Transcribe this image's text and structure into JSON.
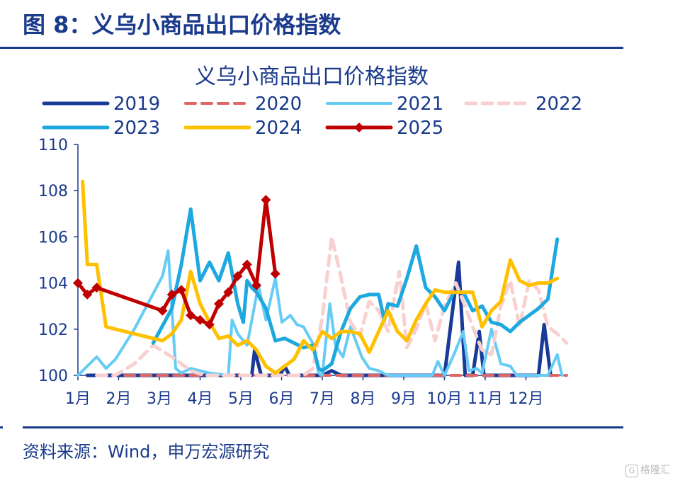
{
  "figure": {
    "header": "图 8：义乌小商品出口价格指数",
    "source": "资料来源：Wind，申万宏源研究",
    "watermark": "格隆汇"
  },
  "colors": {
    "accent": "#1a3a8c"
  },
  "chart_data": {
    "type": "line",
    "title": "义乌小商品出口价格指数",
    "xlabel": "",
    "ylabel": "",
    "ylim": [
      100,
      110
    ],
    "yticks": [
      100,
      102,
      104,
      106,
      108,
      110
    ],
    "xlim": [
      0,
      52
    ],
    "xticks": [
      {
        "label": "1月",
        "pos": 0
      },
      {
        "label": "2月",
        "pos": 4.33
      },
      {
        "label": "3月",
        "pos": 8.67
      },
      {
        "label": "4月",
        "pos": 13
      },
      {
        "label": "5月",
        "pos": 17.33
      },
      {
        "label": "6月",
        "pos": 21.67
      },
      {
        "label": "7月",
        "pos": 26
      },
      {
        "label": "8月",
        "pos": 30.33
      },
      {
        "label": "9月",
        "pos": 34.67
      },
      {
        "label": "10月",
        "pos": 39
      },
      {
        "label": "11月",
        "pos": 43.33
      },
      {
        "label": "12月",
        "pos": 47.67
      }
    ],
    "grid": false,
    "legend_position": "top",
    "series": [
      {
        "name": "2019",
        "color": "#1a3a99",
        "dash": "solid",
        "width": 5,
        "marker": "none",
        "points": [
          [
            1,
            100
          ],
          [
            8,
            100
          ],
          [
            16,
            100
          ],
          [
            18.5,
            100
          ],
          [
            18.8,
            101.1
          ],
          [
            19.5,
            100
          ],
          [
            21.5,
            100
          ],
          [
            22,
            100.4
          ],
          [
            22.5,
            100
          ],
          [
            26,
            100
          ],
          [
            27,
            100.2
          ],
          [
            28,
            100
          ],
          [
            39,
            100
          ],
          [
            40.5,
            104.9
          ],
          [
            41.2,
            100
          ],
          [
            42,
            100
          ],
          [
            42.7,
            101.9
          ],
          [
            43.2,
            100
          ],
          [
            49,
            100
          ],
          [
            49.6,
            102.2
          ],
          [
            50.3,
            100
          ]
        ]
      },
      {
        "name": "2020",
        "color": "#e06666",
        "dash": "dashed",
        "width": 4,
        "marker": "none",
        "points": [
          [
            5,
            100
          ],
          [
            52,
            100
          ]
        ]
      },
      {
        "name": "2021",
        "color": "#66ccf5",
        "dash": "solid",
        "width": 4,
        "marker": "none",
        "points": [
          [
            0,
            100
          ],
          [
            2,
            100.8
          ],
          [
            3,
            100.3
          ],
          [
            4,
            100.7
          ],
          [
            6,
            102
          ],
          [
            9,
            104.3
          ],
          [
            9.6,
            105.4
          ],
          [
            10.4,
            100.3
          ],
          [
            11,
            100.1
          ],
          [
            12,
            100.3
          ],
          [
            14,
            100.1
          ],
          [
            16,
            100
          ],
          [
            16.4,
            102.4
          ],
          [
            17,
            101.8
          ],
          [
            18,
            101.3
          ],
          [
            19.2,
            103.9
          ],
          [
            20,
            102.4
          ],
          [
            21,
            104.2
          ],
          [
            21.7,
            102.3
          ],
          [
            22.6,
            102.6
          ],
          [
            23.3,
            102.2
          ],
          [
            24,
            102.1
          ],
          [
            25.1,
            101.3
          ],
          [
            25.6,
            100.1
          ],
          [
            26,
            100
          ],
          [
            26.8,
            103.1
          ],
          [
            27.4,
            101.3
          ],
          [
            28.2,
            100.8
          ],
          [
            29,
            102.1
          ],
          [
            30.2,
            100.8
          ],
          [
            31,
            100.3
          ],
          [
            32,
            100.2
          ],
          [
            33,
            100
          ],
          [
            37.7,
            100
          ],
          [
            38.3,
            100.6
          ],
          [
            39,
            100
          ],
          [
            40,
            100.9
          ],
          [
            41,
            101.9
          ],
          [
            41.6,
            100.2
          ],
          [
            42.4,
            100.3
          ],
          [
            43,
            100.1
          ],
          [
            44,
            102
          ],
          [
            45,
            100.5
          ],
          [
            46,
            100.4
          ],
          [
            46.7,
            100
          ],
          [
            50,
            100
          ],
          [
            51,
            100.9
          ],
          [
            51.5,
            100
          ]
        ]
      },
      {
        "name": "2022",
        "color": "#f9d0d0",
        "dash": "dashed",
        "width": 5,
        "marker": "none",
        "points": [
          [
            2,
            100
          ],
          [
            4,
            100
          ],
          [
            6,
            100.5
          ],
          [
            8,
            101.3
          ],
          [
            10,
            100.8
          ],
          [
            12,
            100.2
          ],
          [
            13.5,
            100
          ],
          [
            24,
            100
          ],
          [
            25,
            100.3
          ],
          [
            26,
            102.5
          ],
          [
            27,
            106
          ],
          [
            27.8,
            104.6
          ],
          [
            29,
            102.3
          ],
          [
            30,
            101.7
          ],
          [
            31,
            103.2
          ],
          [
            32,
            102.8
          ],
          [
            33,
            101.9
          ],
          [
            34.2,
            104.5
          ],
          [
            35,
            101.2
          ],
          [
            36,
            102
          ],
          [
            37,
            103.1
          ],
          [
            38,
            101.5
          ],
          [
            39,
            103
          ],
          [
            40.2,
            104
          ],
          [
            41,
            103.2
          ],
          [
            42,
            102.1
          ],
          [
            43,
            101.1
          ],
          [
            44,
            100.9
          ],
          [
            45,
            103
          ],
          [
            46,
            104.1
          ],
          [
            47,
            102.1
          ],
          [
            48,
            104.1
          ],
          [
            49,
            103.7
          ],
          [
            50,
            102.1
          ],
          [
            51,
            101.8
          ],
          [
            52,
            101.4
          ]
        ]
      },
      {
        "name": "2023",
        "color": "#1da8e0",
        "dash": "solid",
        "width": 5,
        "marker": "none",
        "points": [
          [
            8,
            101.4
          ],
          [
            10,
            102.9
          ],
          [
            11,
            104.8
          ],
          [
            12,
            107.2
          ],
          [
            13,
            104.1
          ],
          [
            14,
            104.9
          ],
          [
            15,
            104.1
          ],
          [
            16,
            105.3
          ],
          [
            17,
            103.1
          ],
          [
            17.6,
            102.3
          ],
          [
            18,
            104.1
          ],
          [
            18.5,
            103.8
          ],
          [
            19,
            103.6
          ],
          [
            20,
            102.9
          ],
          [
            21,
            101.5
          ],
          [
            22,
            101.6
          ],
          [
            23,
            101.4
          ],
          [
            24,
            101.2
          ],
          [
            25,
            101.3
          ],
          [
            25.6,
            100.3
          ],
          [
            26,
            100.2
          ],
          [
            27,
            100.5
          ],
          [
            28,
            101.9
          ],
          [
            29,
            102.9
          ],
          [
            30,
            103.4
          ],
          [
            31,
            103.5
          ],
          [
            32,
            103.5
          ],
          [
            32.6,
            102.4
          ],
          [
            33,
            103.1
          ],
          [
            34,
            103
          ],
          [
            35,
            104.2
          ],
          [
            36,
            105.6
          ],
          [
            37,
            103.8
          ],
          [
            38,
            103.4
          ],
          [
            39,
            102.8
          ],
          [
            40,
            103.6
          ],
          [
            41,
            103.6
          ],
          [
            42,
            102.8
          ],
          [
            43,
            103
          ],
          [
            44,
            102.3
          ],
          [
            45,
            102.2
          ],
          [
            46,
            101.9
          ],
          [
            47,
            102.3
          ],
          [
            48,
            102.6
          ],
          [
            49,
            102.9
          ],
          [
            50,
            103.3
          ],
          [
            51,
            105.9
          ]
        ]
      },
      {
        "name": "2024",
        "color": "#ffc000",
        "dash": "solid",
        "width": 5,
        "marker": "none",
        "points": [
          [
            0.5,
            108.4
          ],
          [
            1,
            104.8
          ],
          [
            2,
            104.8
          ],
          [
            3,
            102.1
          ],
          [
            4,
            102
          ],
          [
            5,
            101.9
          ],
          [
            6,
            101.8
          ],
          [
            7,
            101.7
          ],
          [
            8,
            101.6
          ],
          [
            9,
            101.5
          ],
          [
            10,
            101.8
          ],
          [
            11,
            102.4
          ],
          [
            12,
            104.5
          ],
          [
            13,
            103.1
          ],
          [
            14,
            102.3
          ],
          [
            15,
            101.6
          ],
          [
            16,
            101.7
          ],
          [
            17,
            101.3
          ],
          [
            18,
            101.5
          ],
          [
            19,
            101.1
          ],
          [
            20,
            100.4
          ],
          [
            21,
            100.1
          ],
          [
            22,
            100.4
          ],
          [
            23,
            100.7
          ],
          [
            24,
            101.5
          ],
          [
            25,
            101.1
          ],
          [
            26,
            101.9
          ],
          [
            27,
            101.6
          ],
          [
            28,
            101.9
          ],
          [
            29,
            101.9
          ],
          [
            30,
            101.8
          ],
          [
            31,
            101
          ],
          [
            32,
            101.9
          ],
          [
            33,
            102.8
          ],
          [
            34,
            101.9
          ],
          [
            35,
            101.5
          ],
          [
            36,
            102.4
          ],
          [
            37,
            103.1
          ],
          [
            38,
            103.7
          ],
          [
            39,
            103.6
          ],
          [
            40,
            103.6
          ],
          [
            41,
            103.6
          ],
          [
            42,
            103.6
          ],
          [
            43,
            102.1
          ],
          [
            44,
            102.8
          ],
          [
            45,
            103.2
          ],
          [
            46,
            105
          ],
          [
            47,
            104.1
          ],
          [
            48,
            103.9
          ],
          [
            49,
            104
          ],
          [
            50,
            104
          ],
          [
            51,
            104.2
          ]
        ]
      },
      {
        "name": "2025",
        "color": "#c00000",
        "dash": "solid",
        "width": 5,
        "marker": "diamond",
        "points": [
          [
            0,
            104
          ],
          [
            1,
            103.5
          ],
          [
            2,
            103.8
          ],
          [
            9,
            102.8
          ],
          [
            10,
            103.5
          ],
          [
            11,
            103.7
          ],
          [
            12,
            102.6
          ],
          [
            13,
            102.4
          ],
          [
            14,
            102.2
          ],
          [
            15,
            103.1
          ],
          [
            16,
            103.6
          ],
          [
            17,
            104.3
          ],
          [
            18,
            104.8
          ],
          [
            19,
            103.9
          ],
          [
            20,
            107.6
          ],
          [
            21,
            104.4
          ]
        ]
      }
    ]
  }
}
